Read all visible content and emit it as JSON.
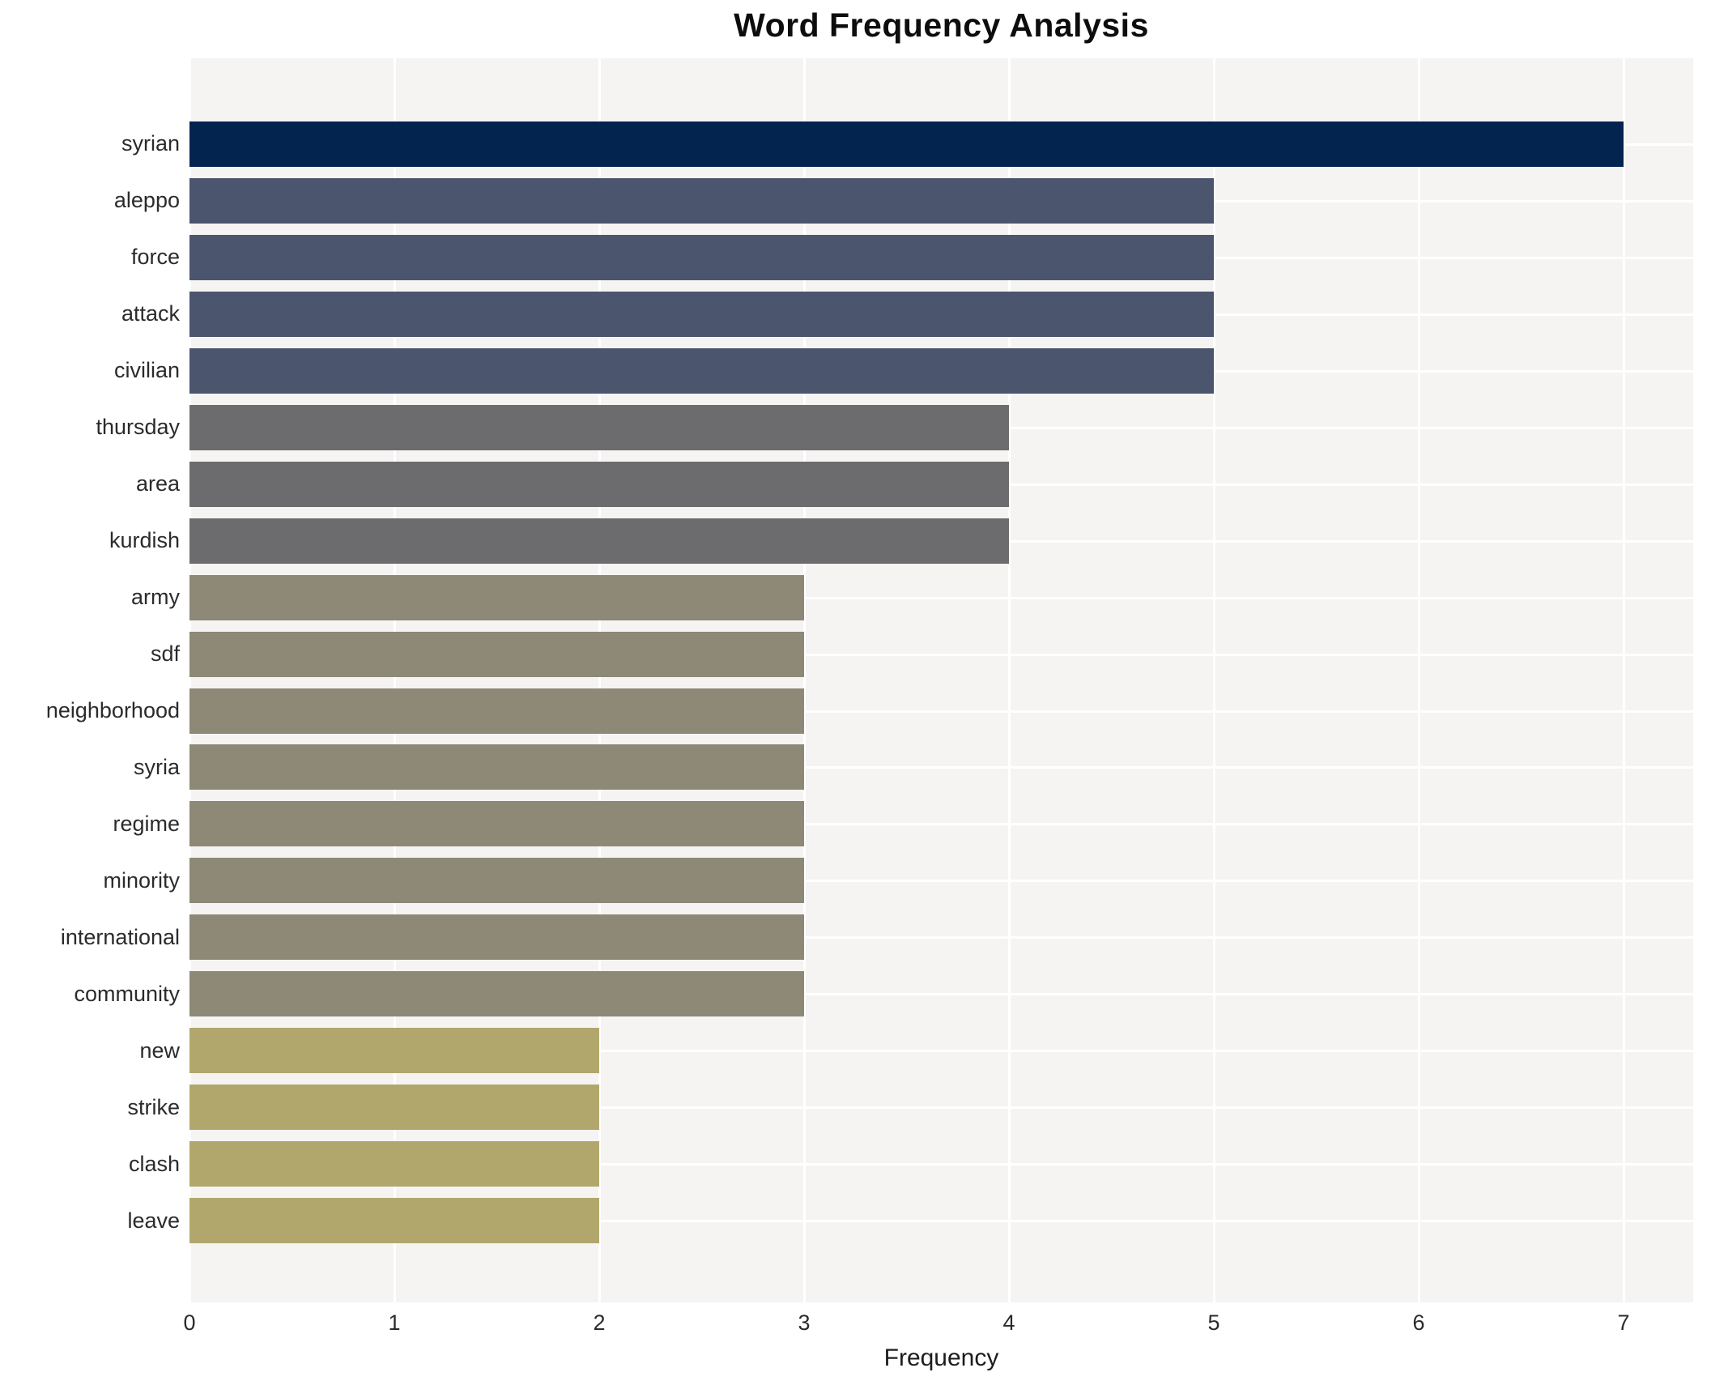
{
  "chart_data": {
    "type": "bar",
    "orientation": "horizontal",
    "title": "Word Frequency Analysis",
    "xlabel": "Frequency",
    "ylabel": "",
    "categories": [
      "syrian",
      "aleppo",
      "force",
      "attack",
      "civilian",
      "thursday",
      "area",
      "kurdish",
      "army",
      "sdf",
      "neighborhood",
      "syria",
      "regime",
      "minority",
      "international",
      "community",
      "new",
      "strike",
      "clash",
      "leave"
    ],
    "values": [
      7,
      5,
      5,
      5,
      5,
      4,
      4,
      4,
      3,
      3,
      3,
      3,
      3,
      3,
      3,
      3,
      2,
      2,
      2,
      2
    ],
    "bar_colors": [
      "#03244f",
      "#4c556e",
      "#4c556e",
      "#4c556e",
      "#4c556e",
      "#6c6c6f",
      "#6c6c6f",
      "#6c6c6f",
      "#8e8877",
      "#8e8877",
      "#8e8877",
      "#8e8877",
      "#8e8877",
      "#8e8877",
      "#8e8877",
      "#8e8877",
      "#b1a76c",
      "#b1a76c",
      "#b1a76c",
      "#b1a76c"
    ],
    "xlim": [
      0,
      7.34
    ],
    "xticks": [
      0,
      1,
      2,
      3,
      4,
      5,
      6,
      7
    ],
    "grid": "on",
    "gridline_color": "#ffffff",
    "plot_background": "#f5f4f2",
    "figure_background": "#ffffff",
    "legend": "none"
  }
}
